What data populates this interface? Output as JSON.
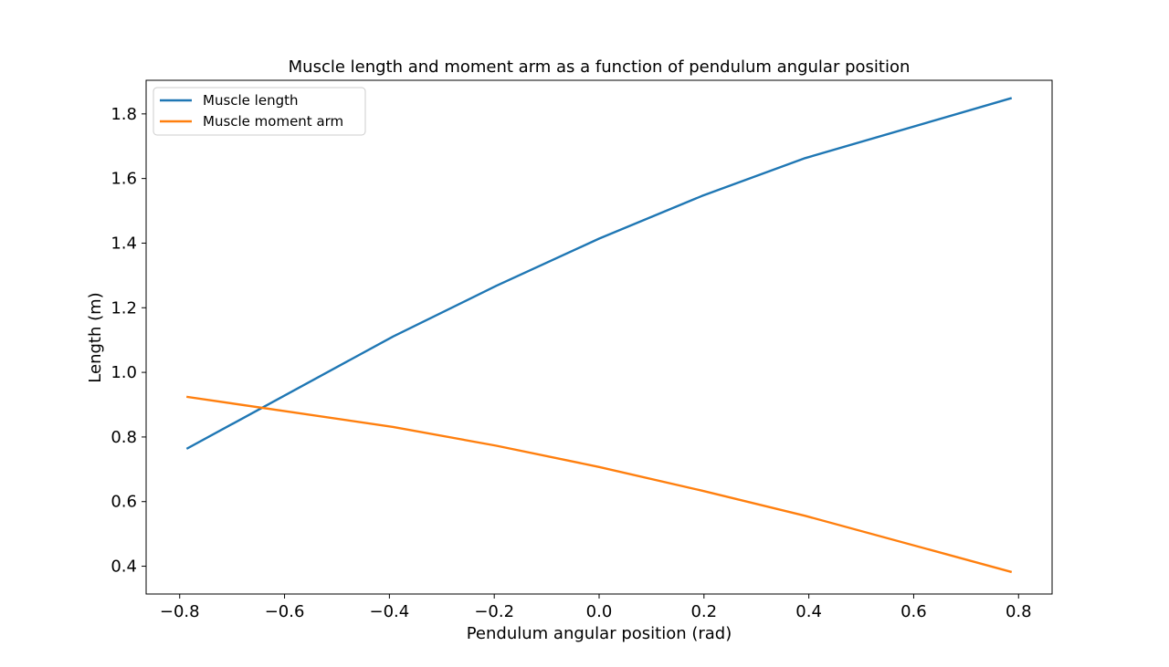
{
  "chart_data": {
    "type": "line",
    "title": "Muscle length and moment arm as a function of pendulum angular position",
    "xlabel": "Pendulum angular position (rad)",
    "ylabel": "Length (m)",
    "xlim": [
      -0.864,
      0.864
    ],
    "ylim": [
      0.314,
      1.904
    ],
    "xticks": [
      -0.8,
      -0.6,
      -0.4,
      -0.2,
      0.0,
      0.2,
      0.4,
      0.6,
      0.8
    ],
    "xtick_labels": [
      "−0.8",
      "−0.6",
      "−0.4",
      "−0.2",
      "0.0",
      "0.2",
      "0.4",
      "0.6",
      "0.8"
    ],
    "yticks": [
      0.4,
      0.6,
      0.8,
      1.0,
      1.2,
      1.4,
      1.6,
      1.8
    ],
    "ytick_labels": [
      "0.4",
      "0.6",
      "0.8",
      "1.0",
      "1.2",
      "1.4",
      "1.6",
      "1.8"
    ],
    "grid": false,
    "legend_position": "top-left",
    "x": [
      -0.785,
      -0.393,
      -0.196,
      0.0,
      0.196,
      0.393,
      0.785
    ],
    "series": [
      {
        "name": "Muscle length",
        "color": "#1f77b4",
        "values": [
          0.765,
          1.111,
          1.268,
          1.414,
          1.546,
          1.663,
          1.848
        ]
      },
      {
        "name": "Muscle moment arm",
        "color": "#ff7f0e",
        "values": [
          0.924,
          0.831,
          0.773,
          0.707,
          0.634,
          0.556,
          0.383
        ]
      }
    ]
  }
}
